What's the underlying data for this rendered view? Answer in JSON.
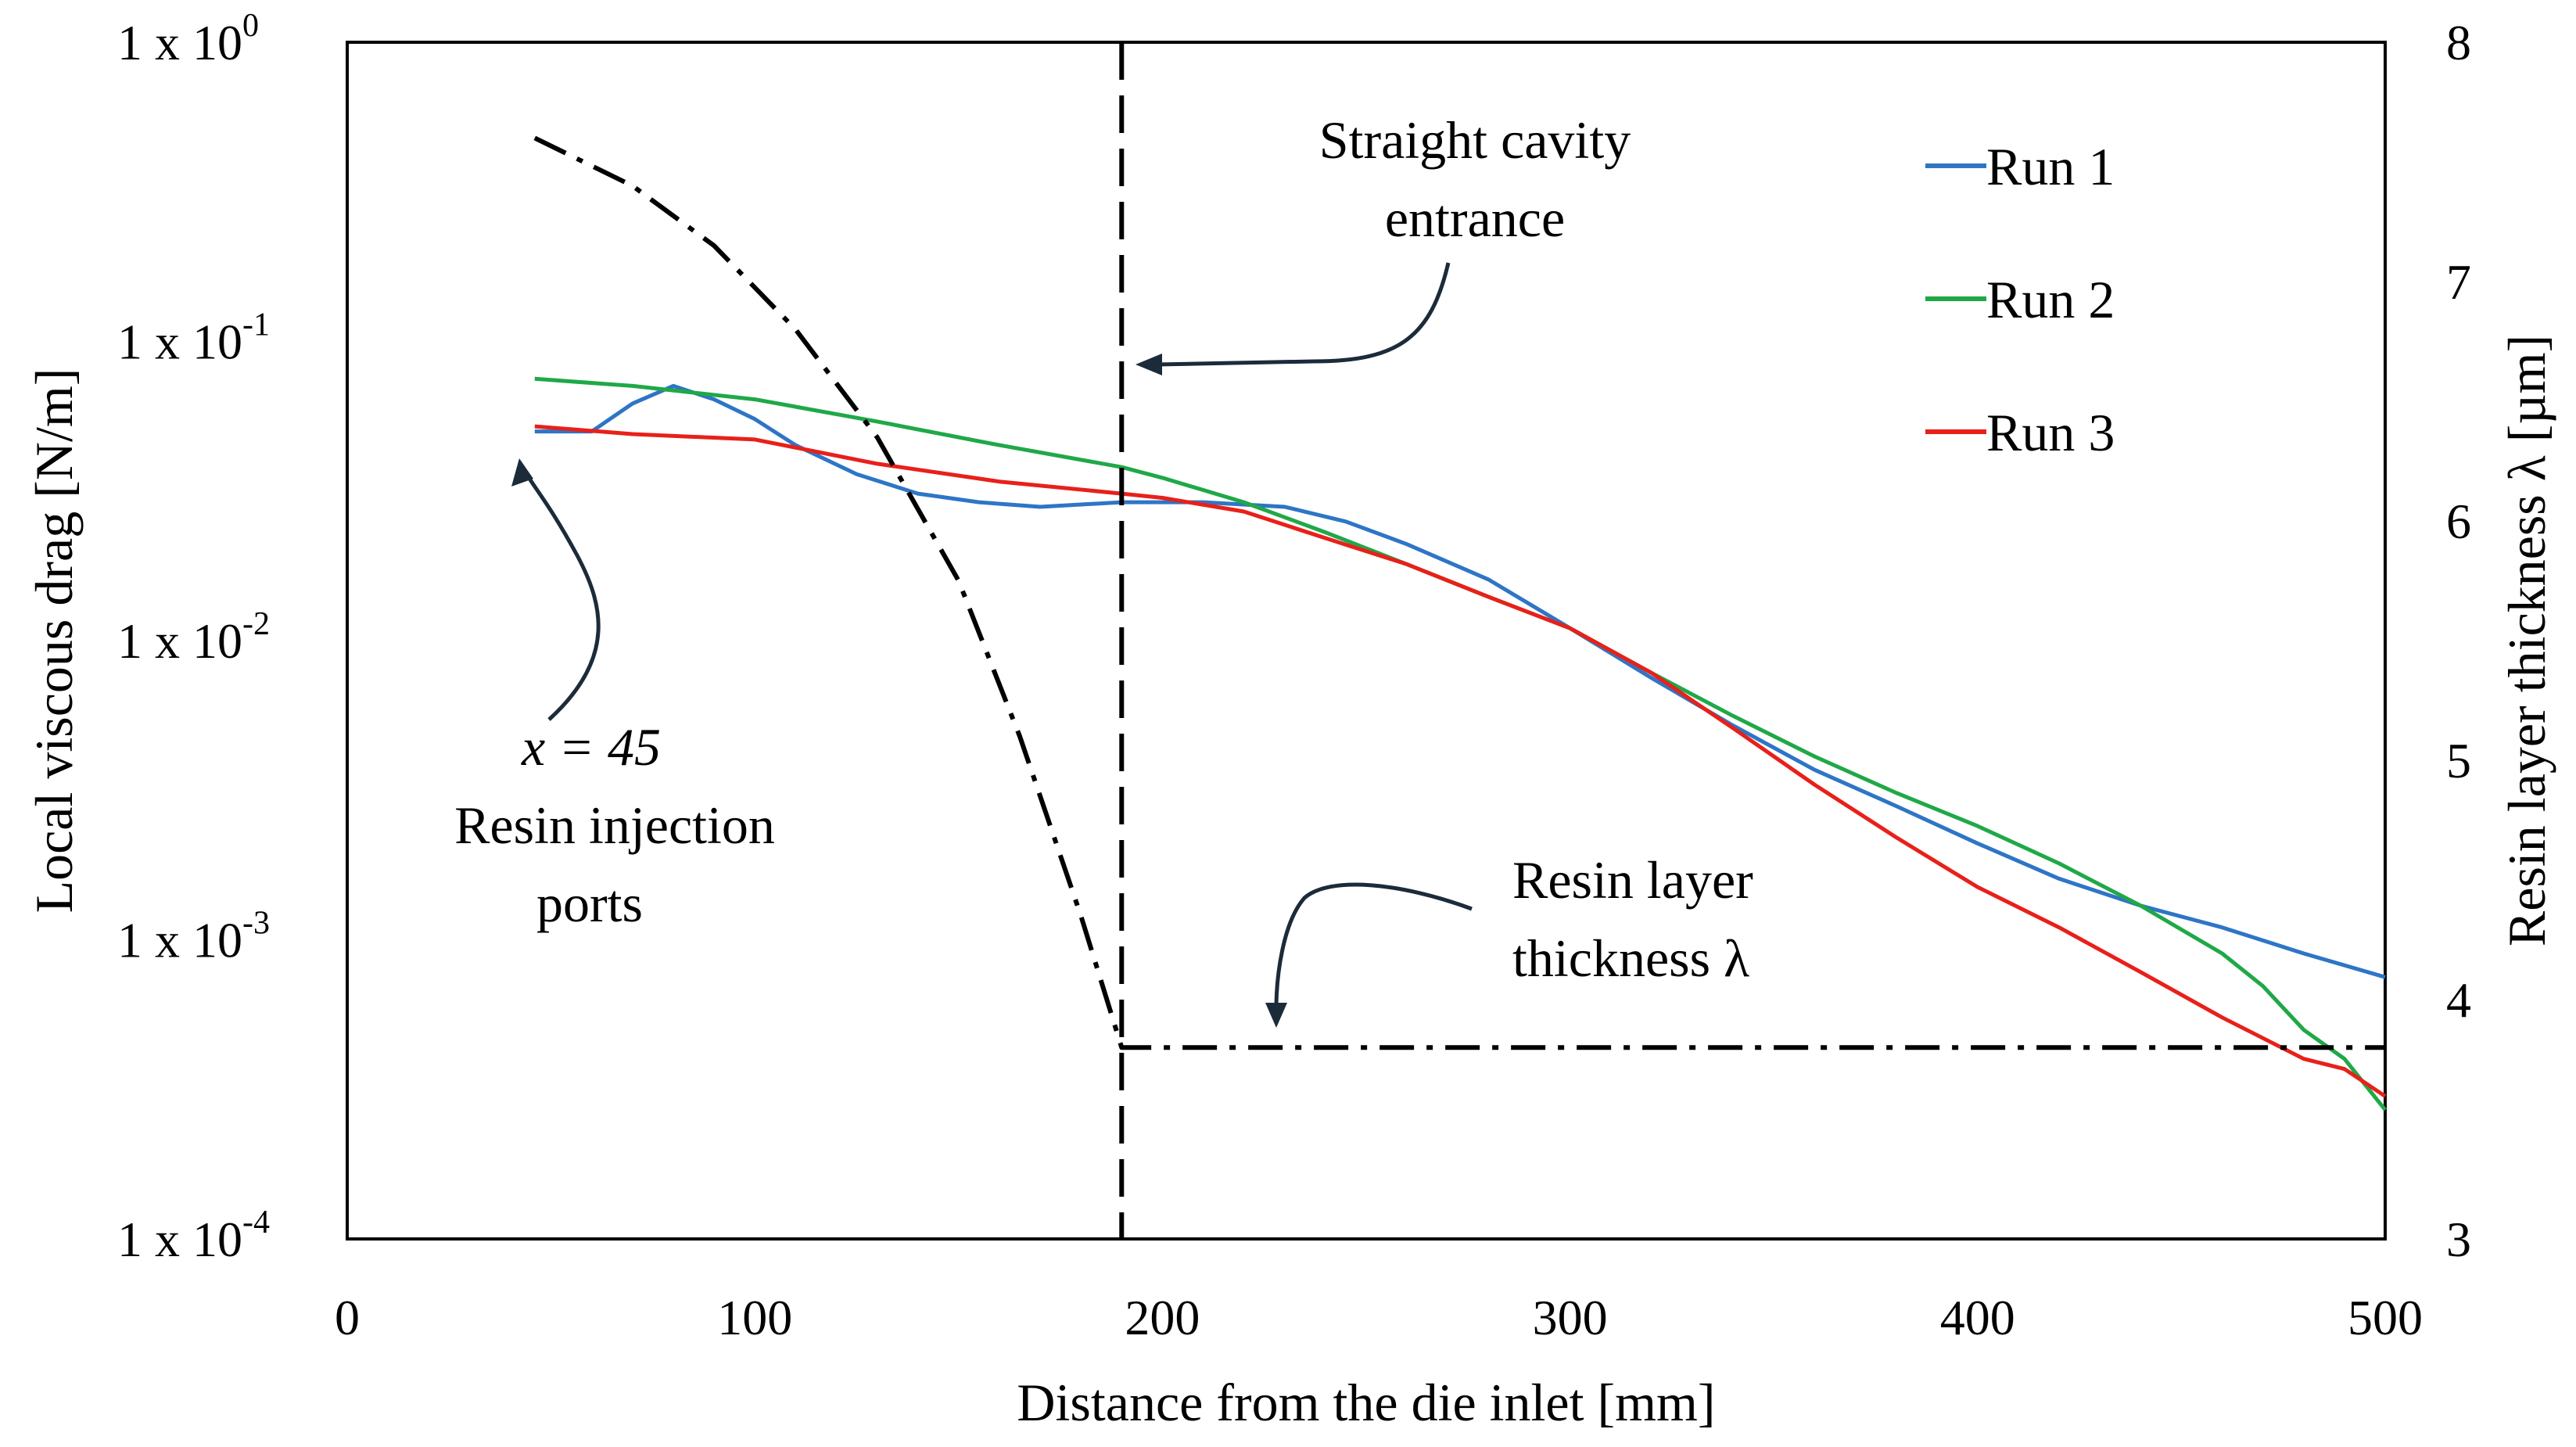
{
  "chart_data": {
    "type": "line",
    "title": "",
    "xlabel": "Distance from the die inlet [mm]",
    "ylabel": "Local viscous drag [N/m]",
    "ylabel_right": "Resin layer thickness  λ [µm]",
    "xlim": [
      0,
      500
    ],
    "ylim": [
      0.0001,
      1
    ],
    "yscale": "log",
    "ylim_right": [
      3,
      8
    ],
    "x_ticks": [
      "0",
      "100",
      "200",
      "300",
      "400",
      "500"
    ],
    "x_tick_values": [
      0,
      100,
      200,
      300,
      400,
      500
    ],
    "y_ticks": [
      {
        "value": 1,
        "base": "1 x 10",
        "exp": "0"
      },
      {
        "value": 0.1,
        "base": "1 x 10",
        "exp": "-1"
      },
      {
        "value": 0.01,
        "base": "1 x 10",
        "exp": "-2"
      },
      {
        "value": 0.001,
        "base": "1 x 10",
        "exp": "-3"
      },
      {
        "value": 0.0001,
        "base": "1 x 10",
        "exp": "-4"
      }
    ],
    "y_ticks_right": [
      "3",
      "4",
      "5",
      "6",
      "7",
      "8"
    ],
    "y_tick_right_values": [
      3,
      4,
      5,
      6,
      7,
      8
    ],
    "legend_position": "top-right",
    "series": [
      {
        "name": "Run 1",
        "color": "#2e75c6",
        "x": [
          46,
          60,
          70,
          80,
          90,
          100,
          110,
          125,
          140,
          155,
          170,
          190,
          210,
          230,
          245,
          260,
          280,
          300,
          320,
          340,
          360,
          380,
          400,
          420,
          440,
          460,
          480,
          500
        ],
        "y": [
          0.05,
          0.05,
          0.062,
          0.071,
          0.064,
          0.055,
          0.045,
          0.036,
          0.031,
          0.029,
          0.028,
          0.029,
          0.029,
          0.028,
          0.025,
          0.021,
          0.016,
          0.011,
          0.0075,
          0.0052,
          0.0037,
          0.0028,
          0.0021,
          0.0016,
          0.0013,
          0.0011,
          0.0009,
          0.00075
        ]
      },
      {
        "name": "Run 2",
        "color": "#20a848",
        "x": [
          46,
          70,
          100,
          130,
          160,
          190,
          200,
          220,
          240,
          260,
          280,
          300,
          320,
          340,
          360,
          380,
          400,
          420,
          440,
          460,
          470,
          480,
          490,
          500
        ],
        "y": [
          0.075,
          0.071,
          0.064,
          0.054,
          0.045,
          0.038,
          0.035,
          0.029,
          0.023,
          0.018,
          0.014,
          0.011,
          0.0078,
          0.0056,
          0.0041,
          0.0031,
          0.0024,
          0.0018,
          0.0013,
          0.0009,
          0.0007,
          0.0005,
          0.0004,
          0.00027
        ]
      },
      {
        "name": "Run 3",
        "color": "#e8201a",
        "x": [
          46,
          70,
          100,
          130,
          160,
          190,
          200,
          220,
          240,
          260,
          280,
          300,
          320,
          340,
          360,
          380,
          400,
          420,
          440,
          460,
          480,
          490,
          500
        ],
        "y": [
          0.052,
          0.049,
          0.047,
          0.039,
          0.034,
          0.031,
          0.03,
          0.027,
          0.022,
          0.018,
          0.014,
          0.011,
          0.0078,
          0.0051,
          0.0033,
          0.0022,
          0.0015,
          0.0011,
          0.00078,
          0.00055,
          0.0004,
          0.00037,
          0.0003
        ]
      },
      {
        "name": "Resin layer thickness λ",
        "axis": "right",
        "color": "#000000",
        "x": [
          46,
          70,
          90,
          110,
          130,
          150,
          165,
          180,
          190,
          200,
          300,
          400,
          500
        ],
        "y": [
          7.6,
          7.4,
          7.15,
          6.8,
          6.35,
          5.75,
          5.1,
          4.35,
          3.8,
          3.8,
          3.8,
          3.8,
          3.8
        ]
      }
    ],
    "vertical_line": {
      "x": 190,
      "label_lines": [
        "Straight cavity",
        "entrance"
      ]
    },
    "annotations": {
      "injection": {
        "x_text": "x = 45",
        "lines": [
          "Resin injection",
          "ports"
        ]
      },
      "resin_layer": {
        "lines": [
          "Resin layer",
          "thickness λ"
        ]
      }
    }
  }
}
